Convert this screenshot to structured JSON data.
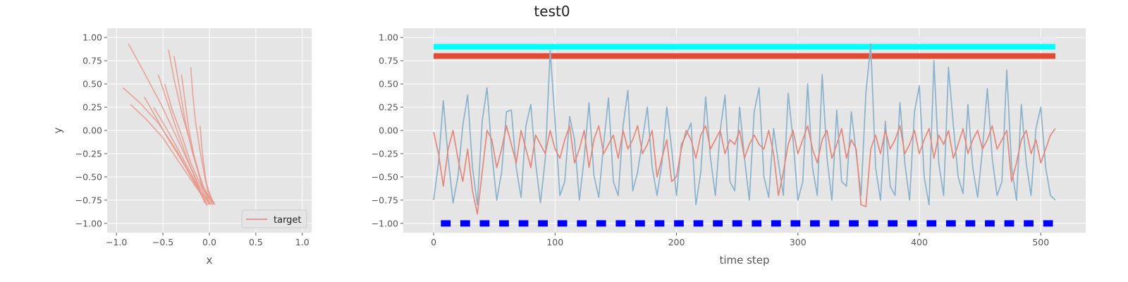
{
  "figure": {
    "title": "test0"
  },
  "colors": {
    "axes_bg": "#e5e5e5",
    "grid": "#ffffff",
    "target": "#e8988a",
    "series_red": "#e5867a",
    "series_blue": "#8ab2cc",
    "band_lavender": "#e8e8f0",
    "band_cyan": "#00ffff",
    "band_red": "#e24a33",
    "band_blue": "#0000ff"
  },
  "chart_data": [
    {
      "type": "line",
      "title": "",
      "xlabel": "x",
      "ylabel": "y",
      "xlim": [
        -1.1,
        1.1
      ],
      "ylim": [
        -1.1,
        1.1
      ],
      "xticks": [
        -1.0,
        -0.5,
        0.0,
        0.5,
        1.0
      ],
      "yticks": [
        -1.0,
        -0.75,
        -0.5,
        -0.25,
        0.0,
        0.25,
        0.5,
        0.75,
        1.0
      ],
      "xtick_labels": [
        "−1.0",
        "−0.5",
        "0.0",
        "0.5",
        "1.0"
      ],
      "ytick_labels": [
        "−1.00",
        "−0.75",
        "−0.50",
        "−0.25",
        "0.00",
        "0.25",
        "0.50",
        "0.75",
        "1.00"
      ],
      "grid": true,
      "legend": {
        "placement": "lower-right",
        "entries": [
          "target"
        ]
      },
      "series": [
        {
          "name": "target",
          "strokes": [
            [
              [
                -0.87,
                0.93
              ],
              [
                -0.7,
                0.62
              ],
              [
                -0.52,
                0.28
              ],
              [
                -0.34,
                -0.1
              ],
              [
                -0.18,
                -0.45
              ],
              [
                -0.05,
                -0.78
              ]
            ],
            [
              [
                -0.93,
                0.46
              ],
              [
                -0.75,
                0.3
              ],
              [
                -0.55,
                0.08
              ],
              [
                -0.35,
                -0.22
              ],
              [
                -0.18,
                -0.52
              ],
              [
                -0.03,
                -0.8
              ]
            ],
            [
              [
                -0.44,
                0.87
              ],
              [
                -0.38,
                0.55
              ],
              [
                -0.3,
                0.2
              ],
              [
                -0.2,
                -0.15
              ],
              [
                -0.1,
                -0.5
              ],
              [
                0.0,
                -0.79
              ]
            ],
            [
              [
                -0.55,
                0.6
              ],
              [
                -0.45,
                0.3
              ],
              [
                -0.35,
                0.0
              ],
              [
                -0.22,
                -0.35
              ],
              [
                -0.1,
                -0.62
              ],
              [
                0.02,
                -0.8
              ]
            ],
            [
              [
                -0.38,
                0.8
              ],
              [
                -0.32,
                0.45
              ],
              [
                -0.26,
                0.1
              ],
              [
                -0.18,
                -0.25
              ],
              [
                -0.08,
                -0.58
              ],
              [
                0.03,
                -0.78
              ]
            ],
            [
              [
                -0.2,
                0.68
              ],
              [
                -0.18,
                0.4
              ],
              [
                -0.15,
                0.1
              ],
              [
                -0.1,
                -0.22
              ],
              [
                -0.04,
                -0.55
              ],
              [
                0.04,
                -0.79
              ]
            ],
            [
              [
                -0.7,
                0.36
              ],
              [
                -0.58,
                0.15
              ],
              [
                -0.45,
                -0.08
              ],
              [
                -0.3,
                -0.32
              ],
              [
                -0.15,
                -0.58
              ],
              [
                -0.02,
                -0.81
              ]
            ],
            [
              [
                -0.6,
                0.25
              ],
              [
                -0.48,
                0.05
              ],
              [
                -0.35,
                -0.18
              ],
              [
                -0.22,
                -0.42
              ],
              [
                -0.1,
                -0.65
              ],
              [
                0.01,
                -0.79
              ]
            ],
            [
              [
                -0.3,
                0.6
              ],
              [
                -0.26,
                0.3
              ],
              [
                -0.22,
                0.0
              ],
              [
                -0.16,
                -0.3
              ],
              [
                -0.08,
                -0.6
              ],
              [
                0.05,
                -0.78
              ]
            ],
            [
              [
                -0.1,
                0.05
              ],
              [
                -0.08,
                -0.2
              ],
              [
                -0.05,
                -0.45
              ],
              [
                -0.02,
                -0.65
              ],
              [
                0.06,
                -0.8
              ]
            ],
            [
              [
                -0.85,
                0.28
              ],
              [
                -0.68,
                0.12
              ],
              [
                -0.5,
                -0.08
              ],
              [
                -0.32,
                -0.35
              ],
              [
                -0.15,
                -0.6
              ],
              [
                0.0,
                -0.8
              ]
            ],
            [
              [
                -0.48,
                0.5
              ],
              [
                -0.4,
                0.22
              ],
              [
                -0.3,
                -0.05
              ],
              [
                -0.2,
                -0.35
              ],
              [
                -0.08,
                -0.62
              ],
              [
                0.04,
                -0.8
              ]
            ]
          ]
        }
      ]
    },
    {
      "type": "line",
      "title": "",
      "xlabel": "time step",
      "ylabel": "",
      "xlim": [
        -25,
        537
      ],
      "ylim": [
        -1.1,
        1.1
      ],
      "xticks": [
        0,
        100,
        200,
        300,
        400,
        500
      ],
      "yticks": [
        -1.0,
        -0.75,
        -0.5,
        -0.25,
        0.0,
        0.25,
        0.5,
        0.75,
        1.0
      ],
      "xtick_labels": [
        "0",
        "100",
        "200",
        "300",
        "400",
        "500"
      ],
      "ytick_labels": [
        "−1.00",
        "−0.75",
        "−0.50",
        "−0.25",
        "0.00",
        "0.25",
        "0.50",
        "0.75",
        "1.00"
      ],
      "grid": true,
      "bands": [
        {
          "y": 0.98,
          "x": [
            0,
            512
          ],
          "color_key": "band_lavender",
          "style": "solid"
        },
        {
          "y": 0.9,
          "x": [
            0,
            512
          ],
          "color_key": "band_cyan",
          "style": "solid"
        },
        {
          "y": 0.8,
          "x": [
            0,
            512
          ],
          "color_key": "band_red",
          "style": "solid"
        },
        {
          "y": -1.0,
          "x": [
            0,
            512
          ],
          "color_key": "band_blue",
          "style": "dashed",
          "period": 16,
          "segment": 8,
          "offset": 6
        }
      ],
      "series": [
        {
          "color_key": "series_blue",
          "x": [
            0,
            4,
            8,
            12,
            16,
            20,
            24,
            28,
            32,
            36,
            40,
            44,
            48,
            52,
            56,
            60,
            64,
            68,
            72,
            76,
            80,
            84,
            88,
            92,
            96,
            100,
            104,
            108,
            112,
            116,
            120,
            124,
            128,
            132,
            136,
            140,
            144,
            148,
            152,
            156,
            160,
            164,
            168,
            172,
            176,
            180,
            184,
            188,
            192,
            196,
            200,
            204,
            208,
            212,
            216,
            220,
            224,
            228,
            232,
            236,
            240,
            244,
            248,
            252,
            256,
            260,
            264,
            268,
            272,
            276,
            280,
            284,
            288,
            292,
            296,
            300,
            304,
            308,
            312,
            316,
            320,
            324,
            328,
            332,
            336,
            340,
            344,
            348,
            352,
            356,
            360,
            364,
            368,
            372,
            376,
            380,
            384,
            388,
            392,
            396,
            400,
            404,
            408,
            412,
            416,
            420,
            424,
            428,
            432,
            436,
            440,
            444,
            448,
            452,
            456,
            460,
            464,
            468,
            472,
            476,
            480,
            484,
            488,
            492,
            496,
            500,
            504,
            508,
            512
          ],
          "values": [
            -0.75,
            -0.35,
            0.32,
            -0.3,
            -0.78,
            -0.5,
            0.05,
            0.38,
            -0.4,
            -0.8,
            0.1,
            0.46,
            -0.25,
            -0.75,
            -0.45,
            0.2,
            0.22,
            -0.4,
            -0.72,
            0.05,
            0.28,
            -0.35,
            -0.78,
            -0.3,
            0.86,
            0.1,
            -0.7,
            -0.55,
            0.15,
            -0.1,
            -0.75,
            -0.3,
            0.3,
            -0.48,
            -0.72,
            -0.15,
            0.35,
            -0.55,
            -0.7,
            0.05,
            0.43,
            -0.65,
            -0.45,
            -0.1,
            0.25,
            -0.4,
            -0.7,
            -0.35,
            0.25,
            -0.2,
            -0.7,
            -0.15,
            -0.05,
            0.08,
            -0.8,
            -0.45,
            0.36,
            -0.3,
            -0.7,
            0.0,
            0.38,
            -0.55,
            -0.65,
            0.25,
            -0.3,
            -0.75,
            0.2,
            0.46,
            -0.5,
            -0.72,
            0.02,
            -0.35,
            -0.7,
            0.4,
            -0.1,
            -0.75,
            -0.55,
            0.5,
            -0.4,
            -0.7,
            0.6,
            -0.3,
            -0.75,
            0.22,
            -0.55,
            -0.6,
            0.2,
            -0.25,
            -0.7,
            0.4,
            0.93,
            -0.4,
            -0.75,
            0.1,
            -0.6,
            -0.7,
            0.3,
            -0.35,
            -0.75,
            0.2,
            0.48,
            -0.5,
            -0.8,
            0.75,
            -0.35,
            -0.7,
            0.68,
            0.05,
            -0.5,
            -0.68,
            0.28,
            -0.4,
            -0.72,
            -0.2,
            0.45,
            -0.3,
            -0.7,
            -0.55,
            0.65,
            -0.4,
            -0.75,
            0.28,
            -0.35,
            -0.7,
            0.02,
            0.25,
            -0.4,
            -0.7,
            -0.75
          ]
        },
        {
          "color_key": "series_red",
          "x": [
            0,
            4,
            8,
            12,
            16,
            20,
            24,
            28,
            32,
            36,
            40,
            44,
            48,
            52,
            56,
            60,
            64,
            68,
            72,
            76,
            80,
            84,
            88,
            92,
            96,
            100,
            104,
            108,
            112,
            116,
            120,
            124,
            128,
            132,
            136,
            140,
            144,
            148,
            152,
            156,
            160,
            164,
            168,
            172,
            176,
            180,
            184,
            188,
            192,
            196,
            200,
            204,
            208,
            212,
            216,
            220,
            224,
            228,
            232,
            236,
            240,
            244,
            248,
            252,
            256,
            260,
            264,
            268,
            272,
            276,
            280,
            284,
            288,
            292,
            296,
            300,
            304,
            308,
            312,
            316,
            320,
            324,
            328,
            332,
            336,
            340,
            344,
            348,
            352,
            356,
            360,
            364,
            368,
            372,
            376,
            380,
            384,
            388,
            392,
            396,
            400,
            404,
            408,
            412,
            416,
            420,
            424,
            428,
            432,
            436,
            440,
            444,
            448,
            452,
            456,
            460,
            464,
            468,
            472,
            476,
            480,
            484,
            488,
            492,
            496,
            500,
            504,
            508,
            512
          ],
          "values": [
            -0.02,
            -0.25,
            -0.6,
            -0.2,
            0.0,
            -0.3,
            -0.55,
            -0.2,
            -0.65,
            -0.9,
            -0.45,
            0.0,
            -0.1,
            -0.4,
            -0.2,
            0.05,
            -0.15,
            -0.35,
            0.0,
            -0.2,
            -0.4,
            -0.05,
            -0.15,
            -0.25,
            0.0,
            -0.2,
            -0.3,
            -0.1,
            0.05,
            -0.35,
            -0.2,
            0.0,
            -0.4,
            -0.1,
            0.05,
            -0.25,
            -0.15,
            -0.05,
            -0.3,
            0.0,
            -0.2,
            -0.1,
            0.05,
            -0.25,
            -0.15,
            0.0,
            -0.5,
            -0.3,
            -0.1,
            -0.55,
            -0.5,
            -0.2,
            0.0,
            -0.1,
            -0.3,
            -0.05,
            0.05,
            -0.2,
            -0.1,
            0.0,
            -0.25,
            -0.1,
            -0.15,
            0.0,
            -0.3,
            -0.15,
            -0.05,
            -0.15,
            -0.2,
            0.0,
            -0.25,
            -0.7,
            -0.45,
            -0.15,
            0.0,
            -0.25,
            -0.1,
            0.05,
            -0.2,
            -0.35,
            -0.1,
            0.0,
            -0.3,
            -0.15,
            0.02,
            -0.3,
            -0.1,
            -0.2,
            -0.8,
            -0.82,
            -0.2,
            -0.05,
            -0.25,
            0.0,
            -0.2,
            -0.1,
            0.05,
            -0.25,
            -0.15,
            0.0,
            -0.25,
            -0.1,
            0.02,
            -0.3,
            -0.05,
            -0.15,
            0.0,
            -0.3,
            -0.15,
            0.02,
            -0.25,
            -0.1,
            0.0,
            -0.2,
            -0.1,
            0.05,
            -0.2,
            -0.1,
            0.0,
            -0.55,
            -0.35,
            -0.1,
            0.0,
            -0.25,
            -0.1,
            -0.35,
            -0.2,
            -0.05,
            0.02
          ]
        }
      ]
    }
  ]
}
